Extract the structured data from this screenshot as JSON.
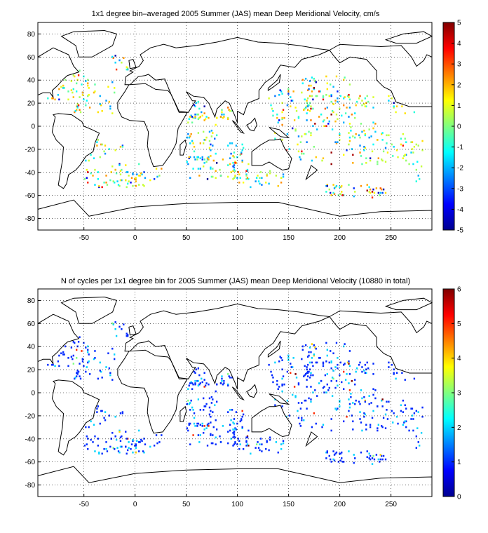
{
  "chart_data": [
    {
      "type": "heatmap",
      "title": "1x1 degree bin–averaged 2005 Summer (JAS) mean Deep Meridional Velocity, cm/s",
      "xlabel": "",
      "ylabel": "",
      "xlim": [
        -95,
        290
      ],
      "ylim": [
        -90,
        90
      ],
      "x_ticks": [
        -50,
        0,
        50,
        100,
        150,
        200,
        250
      ],
      "y_ticks": [
        80,
        60,
        40,
        20,
        0,
        -20,
        -40,
        -60,
        -80
      ],
      "grid": "dotted",
      "colorbar": {
        "min": -5,
        "max": 5,
        "ticks": [
          5,
          4,
          3,
          2,
          1,
          0,
          -1,
          -2,
          -3,
          -4,
          -5
        ],
        "colormap": "jet"
      },
      "value_distribution": "scattered 1x1 degree bins over ocean float tracks, values mostly between -2 and 2 cm/s with extremes of ±5 near the Antarctic Circumpolar Current and western boundary currents"
    },
    {
      "type": "heatmap",
      "title": "N of cycles per 1x1 degree bin for 2005 Summer (JAS) mean Deep Meridional Velocity (10880 in total)",
      "xlabel": "",
      "ylabel": "",
      "xlim": [
        -95,
        290
      ],
      "ylim": [
        -90,
        90
      ],
      "x_ticks": [
        -50,
        0,
        50,
        100,
        150,
        200,
        250
      ],
      "y_ticks": [
        80,
        60,
        40,
        20,
        0,
        -20,
        -40,
        -60,
        -80
      ],
      "grid": "dotted",
      "colorbar": {
        "min": 0,
        "max": 6,
        "ticks": [
          6,
          5,
          4,
          3,
          2,
          1,
          0
        ],
        "colormap": "jet"
      },
      "total_cycles": 10880,
      "value_distribution": "most bins hold 1 cycle (dark blue), fewer with 2-3, rare bins up to 6"
    }
  ],
  "colors": {
    "land_outline": "#000000",
    "background": "#ffffff",
    "grid": "#000000"
  }
}
